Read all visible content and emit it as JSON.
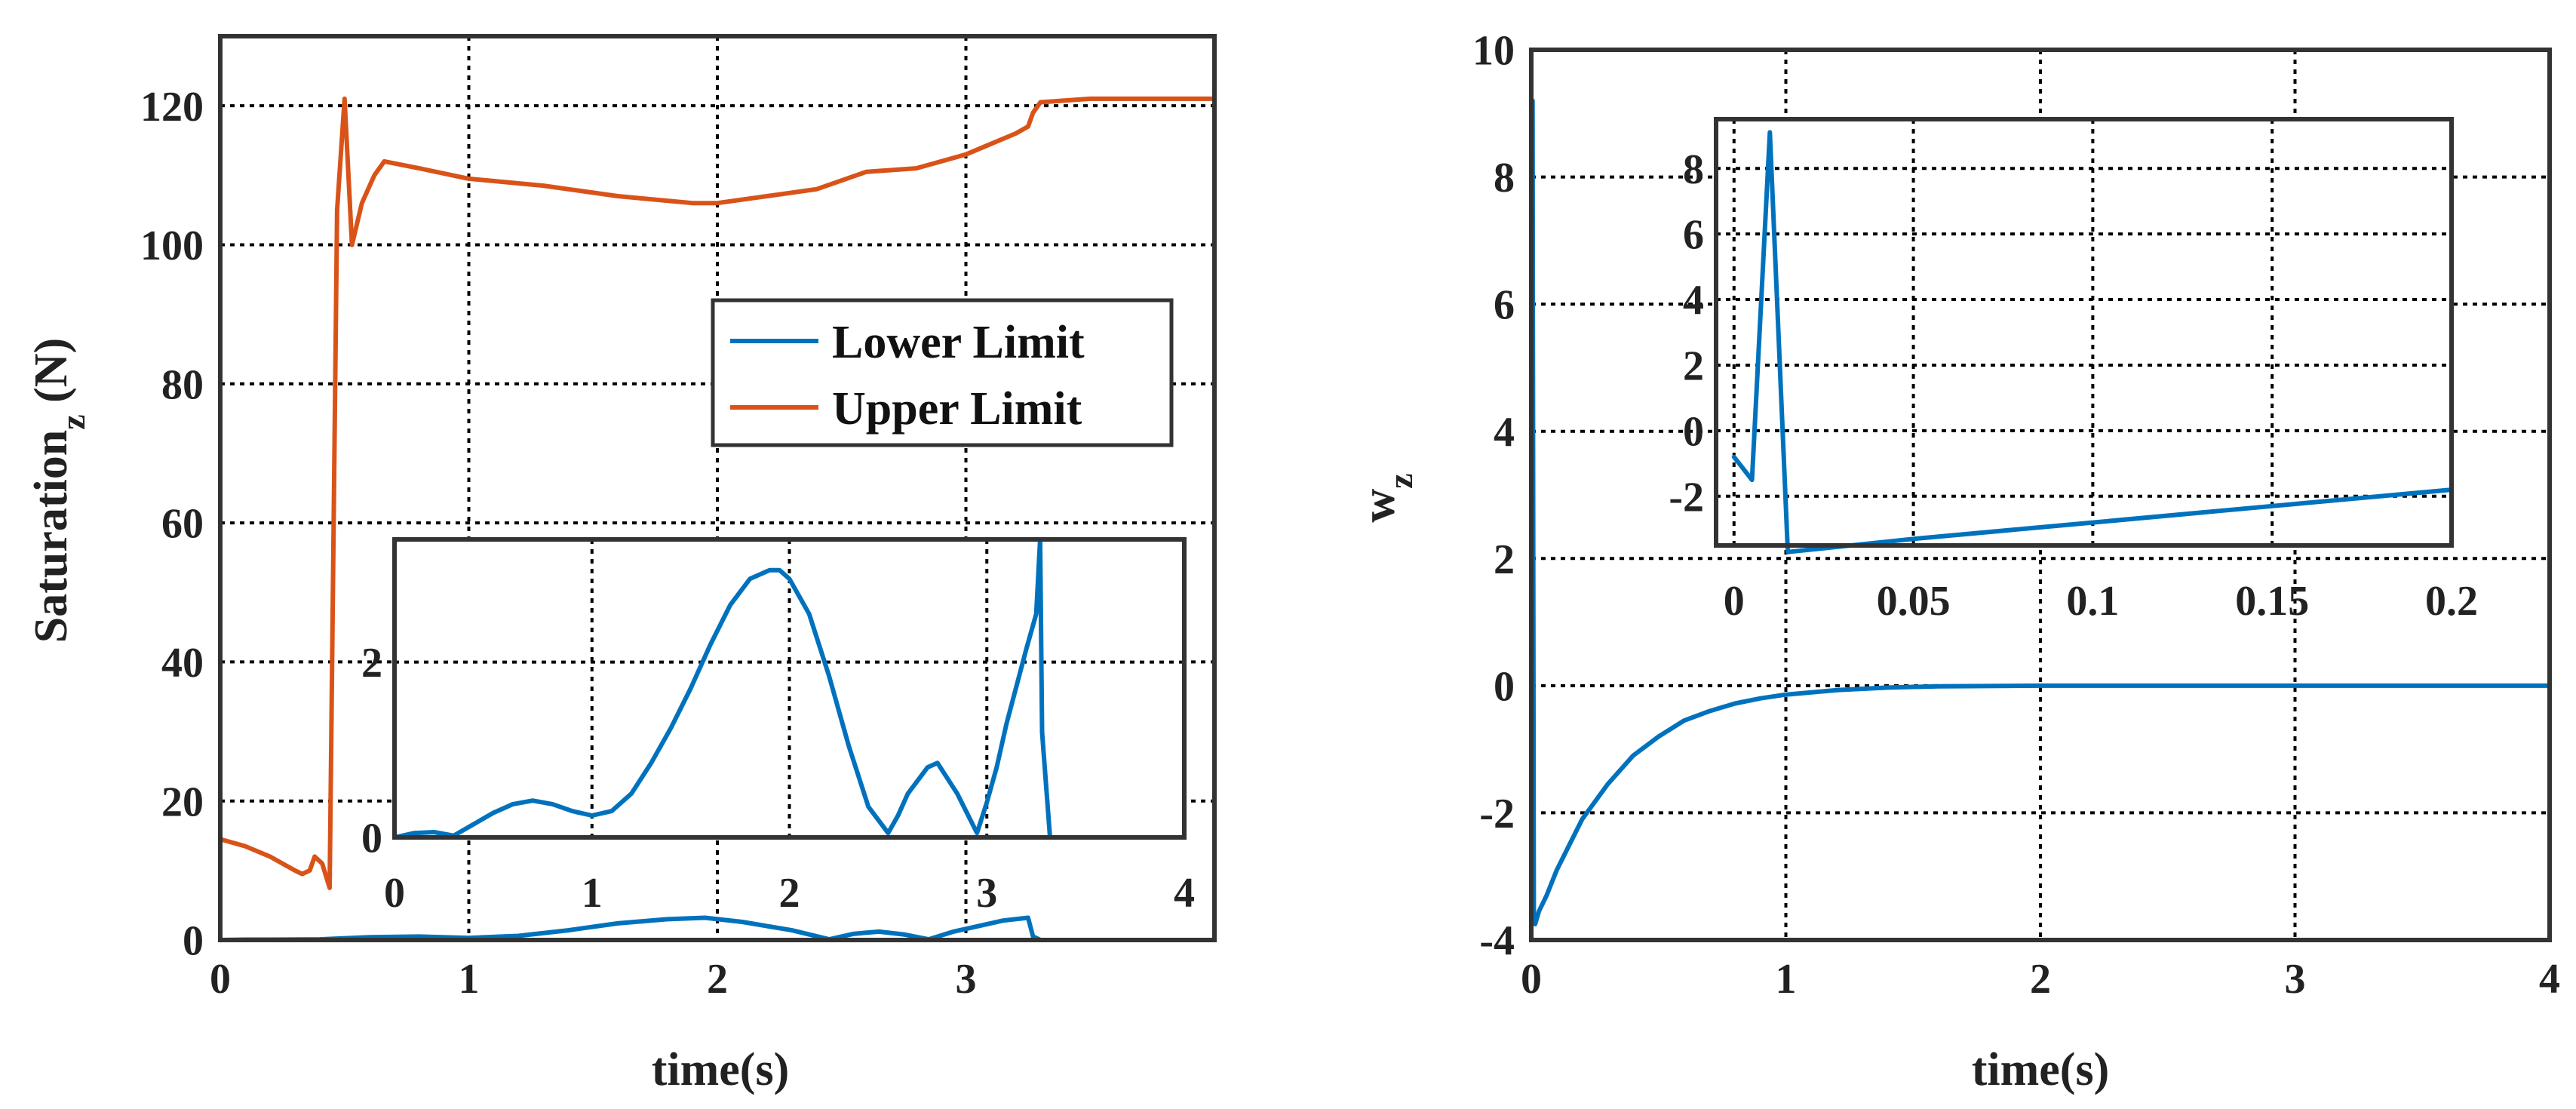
{
  "chart_data": [
    {
      "type": "line",
      "xlabel": "time(s)",
      "ylabel": "Saturation",
      "ylabel_sub": "z",
      "ylabel_suffix": " (N)",
      "xlim": [
        0,
        4
      ],
      "ylim": [
        0,
        130
      ],
      "xticks": [
        "0",
        "1",
        "2",
        "3"
      ],
      "yticks": [
        "0",
        "20",
        "40",
        "60",
        "80",
        "100",
        "120"
      ],
      "legend_position": "right-middle",
      "grid": true,
      "series": [
        {
          "name": "Lower Limit",
          "color": "#0072BD",
          "x": [
            0,
            0.1,
            0.2,
            0.4,
            0.6,
            0.8,
            1.0,
            1.2,
            1.4,
            1.6,
            1.8,
            1.95,
            2.1,
            2.3,
            2.45,
            2.55,
            2.65,
            2.75,
            2.85,
            2.95,
            3.05,
            3.15,
            3.25,
            3.27,
            3.3,
            4
          ],
          "y": [
            0,
            0.05,
            0.05,
            0.1,
            0.4,
            0.5,
            0.3,
            0.6,
            1.4,
            2.4,
            3.0,
            3.2,
            2.6,
            1.4,
            0.1,
            0.9,
            1.2,
            0.8,
            0.1,
            1.2,
            2.0,
            2.8,
            3.2,
            0.5,
            0,
            0
          ]
        },
        {
          "name": "Upper Limit",
          "color": "#D95319",
          "x": [
            0,
            0.1,
            0.2,
            0.3,
            0.33,
            0.36,
            0.38,
            0.41,
            0.44,
            0.47,
            0.5,
            0.53,
            0.57,
            0.62,
            0.66,
            0.8,
            1.0,
            1.3,
            1.6,
            1.9,
            2.0,
            2.2,
            2.4,
            2.6,
            2.8,
            3.0,
            3.1,
            3.2,
            3.25,
            3.27,
            3.3,
            3.5,
            4
          ],
          "y": [
            14.5,
            13.5,
            12,
            10,
            9.5,
            10,
            12,
            11,
            7.5,
            105,
            121,
            100,
            106,
            110,
            112,
            111,
            109.5,
            108.5,
            107,
            106,
            106,
            107,
            108,
            110.5,
            111,
            113,
            114.5,
            116,
            117,
            119,
            120.5,
            121,
            121
          ]
        }
      ],
      "inset": {
        "xlim": [
          0,
          4
        ],
        "ylim": [
          0,
          3.4
        ],
        "xticks": [
          "0",
          "1",
          "2",
          "3",
          "4"
        ],
        "yticks": [
          "0",
          "2"
        ],
        "series_color": "#0072BD",
        "x": [
          0,
          0.1,
          0.2,
          0.3,
          0.4,
          0.5,
          0.6,
          0.7,
          0.8,
          0.9,
          1.0,
          1.1,
          1.2,
          1.3,
          1.4,
          1.5,
          1.6,
          1.7,
          1.8,
          1.9,
          1.95,
          2.0,
          2.1,
          2.2,
          2.3,
          2.4,
          2.5,
          2.55,
          2.6,
          2.7,
          2.75,
          2.85,
          2.95,
          3.0,
          3.05,
          3.1,
          3.2,
          3.25,
          3.27,
          3.28,
          3.32,
          4
        ],
        "y": [
          0,
          0.05,
          0.06,
          0.02,
          0.15,
          0.28,
          0.38,
          0.42,
          0.38,
          0.3,
          0.25,
          0.3,
          0.5,
          0.85,
          1.25,
          1.7,
          2.2,
          2.65,
          2.95,
          3.05,
          3.05,
          2.95,
          2.55,
          1.85,
          1.05,
          0.35,
          0.05,
          0.25,
          0.5,
          0.8,
          0.85,
          0.5,
          0.05,
          0.4,
          0.8,
          1.3,
          2.15,
          2.55,
          3.4,
          1.2,
          0,
          0
        ]
      }
    },
    {
      "type": "line",
      "xlabel": "time(s)",
      "ylabel": "w",
      "ylabel_sub": "z",
      "xlim": [
        0,
        4
      ],
      "ylim": [
        -4,
        10
      ],
      "xticks": [
        "0",
        "1",
        "2",
        "3",
        "4"
      ],
      "yticks": [
        "-4",
        "-2",
        "0",
        "2",
        "4",
        "6",
        "8",
        "10"
      ],
      "grid": true,
      "series": [
        {
          "color": "#0072BD",
          "x": [
            0,
            0.005,
            0.01,
            0.015,
            0.03,
            0.06,
            0.1,
            0.15,
            0.2,
            0.3,
            0.4,
            0.5,
            0.6,
            0.7,
            0.8,
            0.9,
            1.0,
            1.2,
            1.4,
            1.6,
            2.0,
            2.5,
            3.0,
            4.0
          ],
          "y": [
            -0.8,
            9.2,
            -3.6,
            -3.75,
            -3.55,
            -3.3,
            -2.9,
            -2.5,
            -2.1,
            -1.55,
            -1.1,
            -0.8,
            -0.55,
            -0.4,
            -0.28,
            -0.2,
            -0.14,
            -0.07,
            -0.03,
            -0.01,
            0,
            0,
            0,
            0
          ]
        }
      ],
      "inset": {
        "xlim": [
          -0.005,
          0.2
        ],
        "ylim": [
          -3.5,
          9.5
        ],
        "xticks": [
          "0",
          "0.05",
          "0.1",
          "0.15",
          "0.2"
        ],
        "yticks": [
          "-2",
          "0",
          "2",
          "4",
          "6",
          "8"
        ],
        "series_color": "#0072BD",
        "x": [
          0,
          0.005,
          0.01,
          0.015,
          0.05,
          0.1,
          0.15,
          0.2
        ],
        "y": [
          -0.8,
          -1.5,
          9.1,
          -3.7,
          -3.3,
          -2.8,
          -2.3,
          -1.8
        ]
      }
    }
  ]
}
